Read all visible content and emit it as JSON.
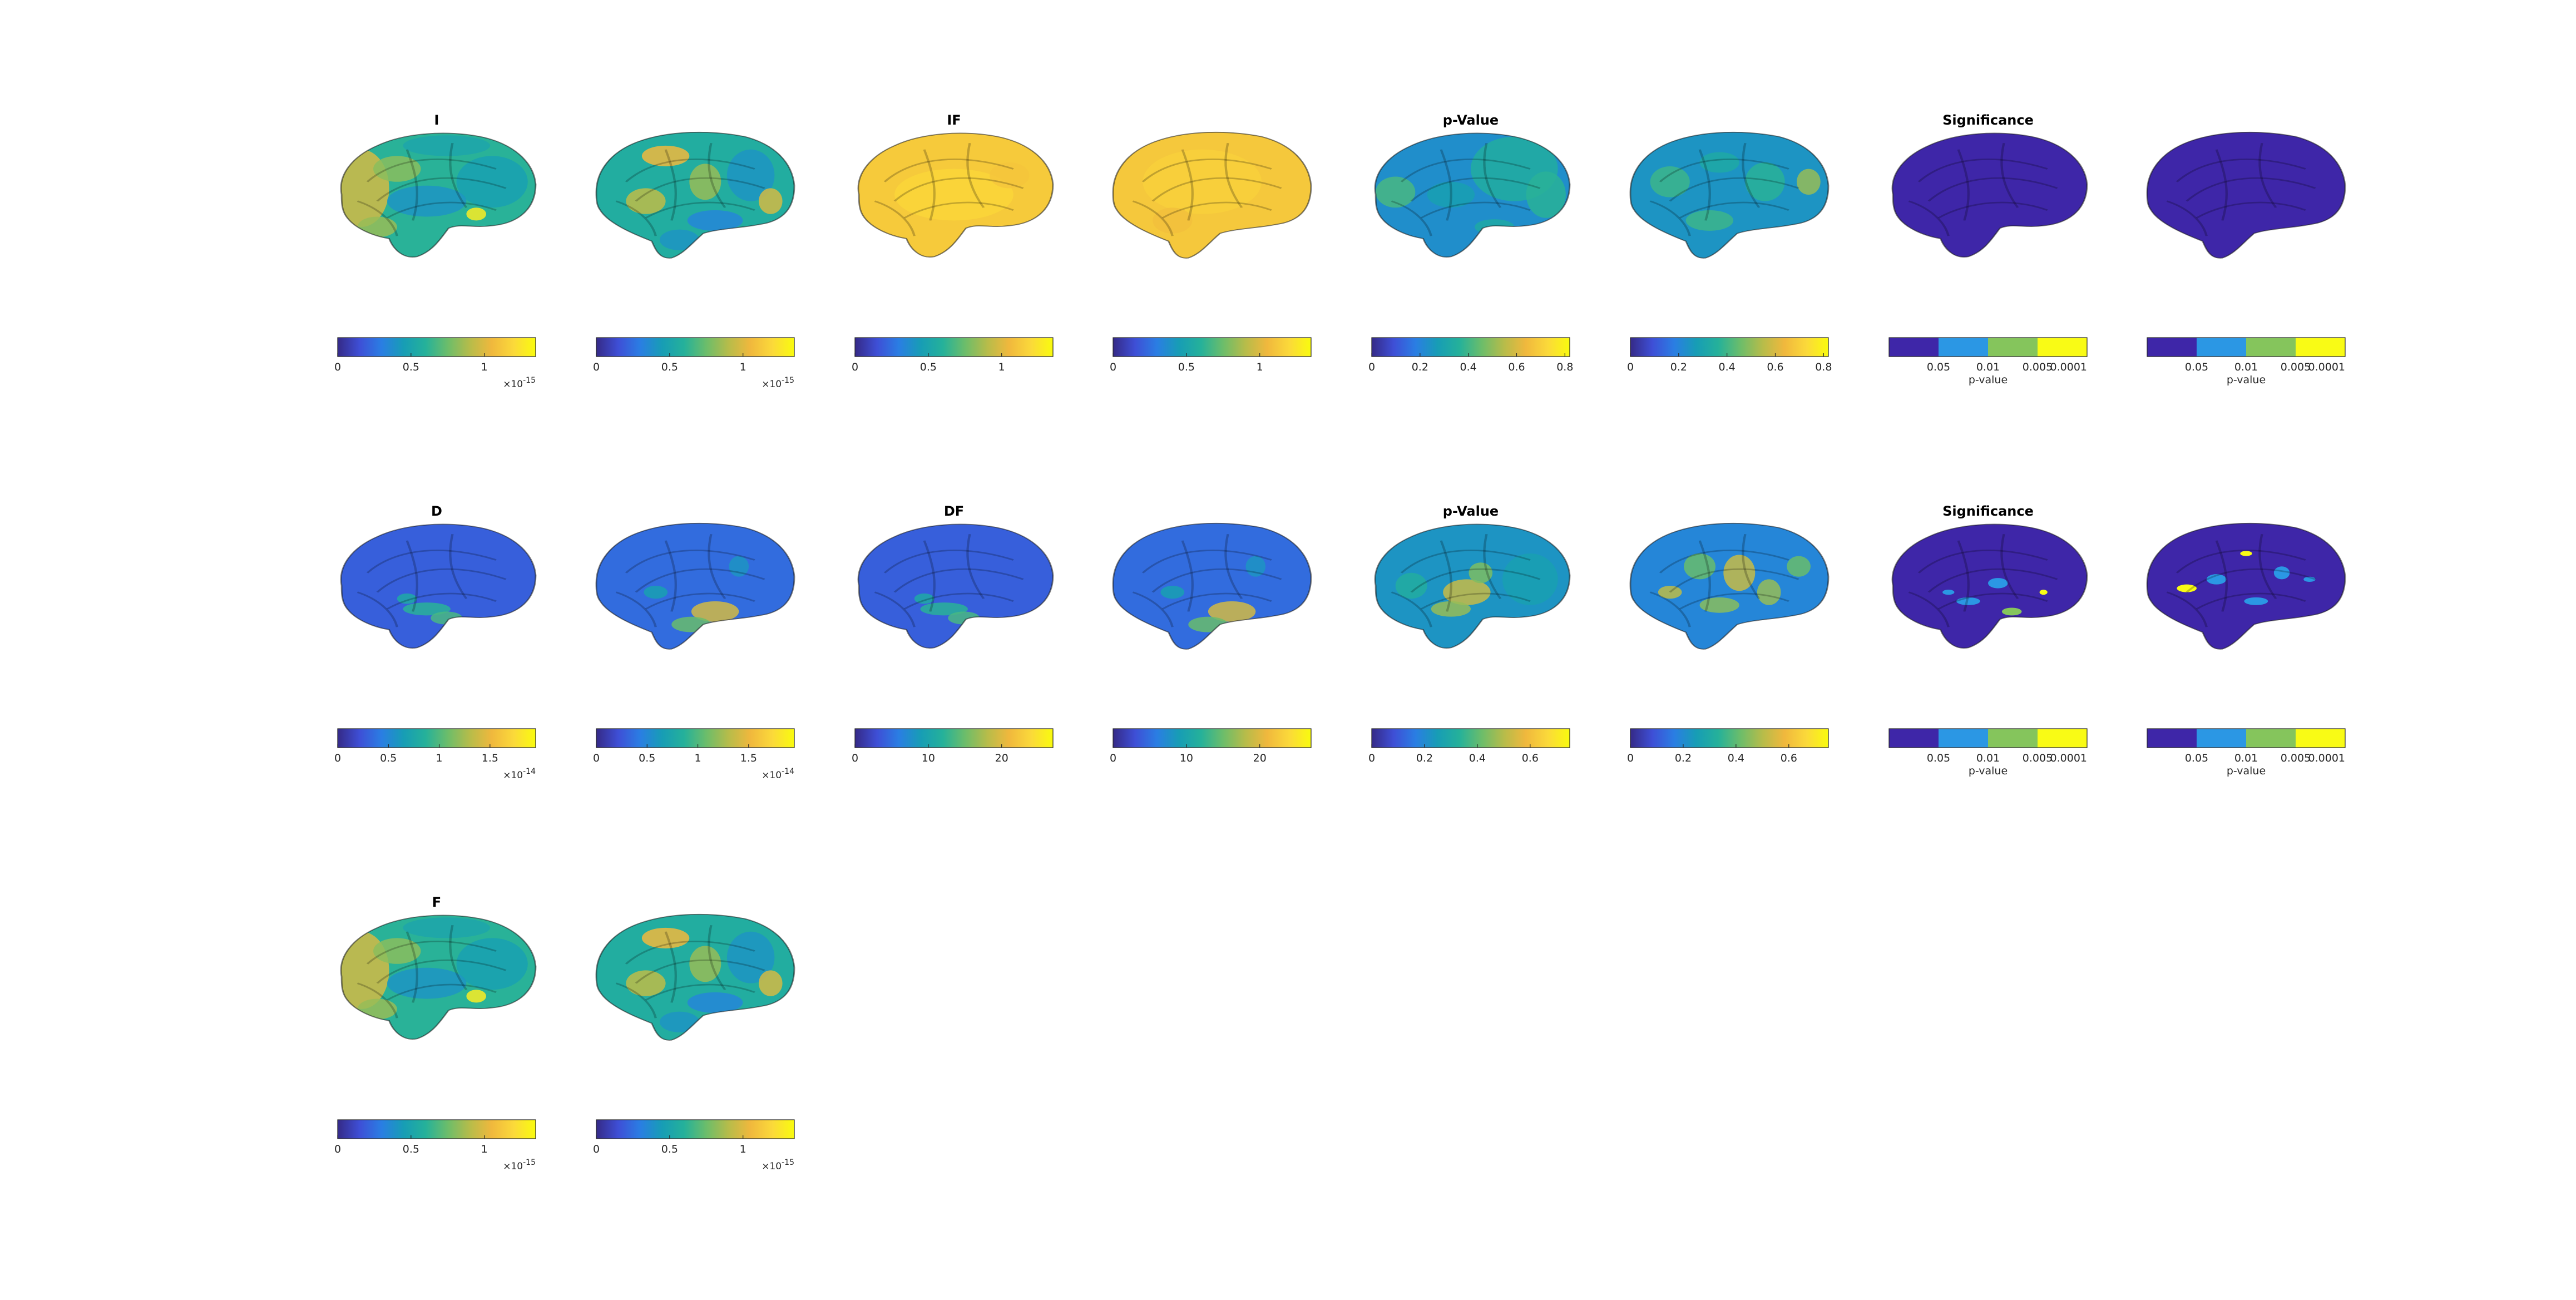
{
  "colors": {
    "parula": [
      "#352a87",
      "#3e4fd6",
      "#2a7ee3",
      "#179db5",
      "#25b19a",
      "#6cbd6a",
      "#b6bc4a",
      "#f0b83d",
      "#fbd93a",
      "#f9fb0e"
    ],
    "significance": [
      "#3e26a8",
      "#2b97e4",
      "#85c55c",
      "#f9fb15"
    ],
    "outline": "#000000"
  },
  "chart_data": [
    {
      "type": "heatmap",
      "title": "I",
      "view": "medial",
      "pattern": "I_medial",
      "colorbar": {
        "kind": "continuous",
        "ticks": [
          "0",
          "0.5",
          "1"
        ],
        "values": [
          0,
          0.5,
          1
        ],
        "range": [
          0,
          1.35
        ],
        "exponent": "-15"
      }
    },
    {
      "type": "heatmap",
      "title": "",
      "view": "lateral",
      "pattern": "I_lateral",
      "colorbar": {
        "kind": "continuous",
        "ticks": [
          "0",
          "0.5",
          "1"
        ],
        "values": [
          0,
          0.5,
          1
        ],
        "range": [
          0,
          1.35
        ],
        "exponent": "-15"
      }
    },
    {
      "type": "heatmap",
      "title": "IF",
      "view": "medial",
      "pattern": "IF_medial",
      "colorbar": {
        "kind": "continuous",
        "ticks": [
          "0",
          "0.5",
          "1"
        ],
        "values": [
          0,
          0.5,
          1
        ],
        "range": [
          0,
          1.35
        ],
        "exponent": ""
      }
    },
    {
      "type": "heatmap",
      "title": "",
      "view": "lateral",
      "pattern": "IF_lateral",
      "colorbar": {
        "kind": "continuous",
        "ticks": [
          "0",
          "0.5",
          "1"
        ],
        "values": [
          0,
          0.5,
          1
        ],
        "range": [
          0,
          1.35
        ],
        "exponent": ""
      }
    },
    {
      "type": "heatmap",
      "title": "p-Value",
      "view": "medial",
      "pattern": "P1_medial",
      "colorbar": {
        "kind": "continuous",
        "ticks": [
          "0",
          "0.2",
          "0.4",
          "0.6",
          "0.8"
        ],
        "values": [
          0,
          0.2,
          0.4,
          0.6,
          0.8
        ],
        "range": [
          0,
          0.82
        ],
        "exponent": ""
      }
    },
    {
      "type": "heatmap",
      "title": "",
      "view": "lateral",
      "pattern": "P1_lateral",
      "colorbar": {
        "kind": "continuous",
        "ticks": [
          "0",
          "0.2",
          "0.4",
          "0.6",
          "0.8"
        ],
        "values": [
          0,
          0.2,
          0.4,
          0.6,
          0.8
        ],
        "range": [
          0,
          0.82
        ],
        "exponent": ""
      }
    },
    {
      "type": "heatmap",
      "title": "Significance",
      "view": "medial",
      "pattern": "S1_medial",
      "colorbar": {
        "kind": "discrete",
        "ticks": [
          "0.05",
          "0.01",
          "0.005",
          "0.0001"
        ],
        "label": "p-value"
      }
    },
    {
      "type": "heatmap",
      "title": "",
      "view": "lateral",
      "pattern": "S1_lateral",
      "colorbar": {
        "kind": "discrete",
        "ticks": [
          "0.05",
          "0.01",
          "0.005",
          "0.0001"
        ],
        "label": "p-value"
      }
    },
    {
      "type": "heatmap",
      "title": "D",
      "view": "medial",
      "pattern": "D_medial",
      "colorbar": {
        "kind": "continuous",
        "ticks": [
          "0",
          "0.5",
          "1",
          "1.5"
        ],
        "values": [
          0,
          0.5,
          1,
          1.5
        ],
        "range": [
          0,
          1.95
        ],
        "exponent": "-14"
      }
    },
    {
      "type": "heatmap",
      "title": "",
      "view": "lateral",
      "pattern": "D_lateral",
      "colorbar": {
        "kind": "continuous",
        "ticks": [
          "0",
          "0.5",
          "1",
          "1.5"
        ],
        "values": [
          0,
          0.5,
          1,
          1.5
        ],
        "range": [
          0,
          1.95
        ],
        "exponent": "-14"
      }
    },
    {
      "type": "heatmap",
      "title": "DF",
      "view": "medial",
      "pattern": "D_medial",
      "colorbar": {
        "kind": "continuous",
        "ticks": [
          "0",
          "10",
          "20"
        ],
        "values": [
          0,
          10,
          20
        ],
        "range": [
          0,
          27
        ],
        "exponent": ""
      }
    },
    {
      "type": "heatmap",
      "title": "",
      "view": "lateral",
      "pattern": "D_lateral",
      "colorbar": {
        "kind": "continuous",
        "ticks": [
          "0",
          "10",
          "20"
        ],
        "values": [
          0,
          10,
          20
        ],
        "range": [
          0,
          27
        ],
        "exponent": ""
      }
    },
    {
      "type": "heatmap",
      "title": "p-Value",
      "view": "medial",
      "pattern": "P2_medial",
      "colorbar": {
        "kind": "continuous",
        "ticks": [
          "0",
          "0.2",
          "0.4",
          "0.6"
        ],
        "values": [
          0,
          0.2,
          0.4,
          0.6
        ],
        "range": [
          0,
          0.75
        ],
        "exponent": ""
      }
    },
    {
      "type": "heatmap",
      "title": "",
      "view": "lateral",
      "pattern": "P2_lateral",
      "colorbar": {
        "kind": "continuous",
        "ticks": [
          "0",
          "0.2",
          "0.4",
          "0.6"
        ],
        "values": [
          0,
          0.2,
          0.4,
          0.6
        ],
        "range": [
          0,
          0.75
        ],
        "exponent": ""
      }
    },
    {
      "type": "heatmap",
      "title": "Significance",
      "view": "medial",
      "pattern": "S2_medial",
      "colorbar": {
        "kind": "discrete",
        "ticks": [
          "0.05",
          "0.01",
          "0.005",
          "0.0001"
        ],
        "label": "p-value"
      }
    },
    {
      "type": "heatmap",
      "title": "",
      "view": "lateral",
      "pattern": "S2_lateral",
      "colorbar": {
        "kind": "discrete",
        "ticks": [
          "0.05",
          "0.01",
          "0.005",
          "0.0001"
        ],
        "label": "p-value"
      }
    },
    {
      "type": "heatmap",
      "title": "F",
      "view": "medial",
      "pattern": "I_medial",
      "colorbar": {
        "kind": "continuous",
        "ticks": [
          "0",
          "0.5",
          "1"
        ],
        "values": [
          0,
          0.5,
          1
        ],
        "range": [
          0,
          1.35
        ],
        "exponent": "-15"
      }
    },
    {
      "type": "heatmap",
      "title": "",
      "view": "lateral",
      "pattern": "I_lateral",
      "colorbar": {
        "kind": "continuous",
        "ticks": [
          "0",
          "0.5",
          "1"
        ],
        "values": [
          0,
          0.5,
          1
        ],
        "range": [
          0,
          1.35
        ],
        "exponent": "-15"
      }
    }
  ]
}
